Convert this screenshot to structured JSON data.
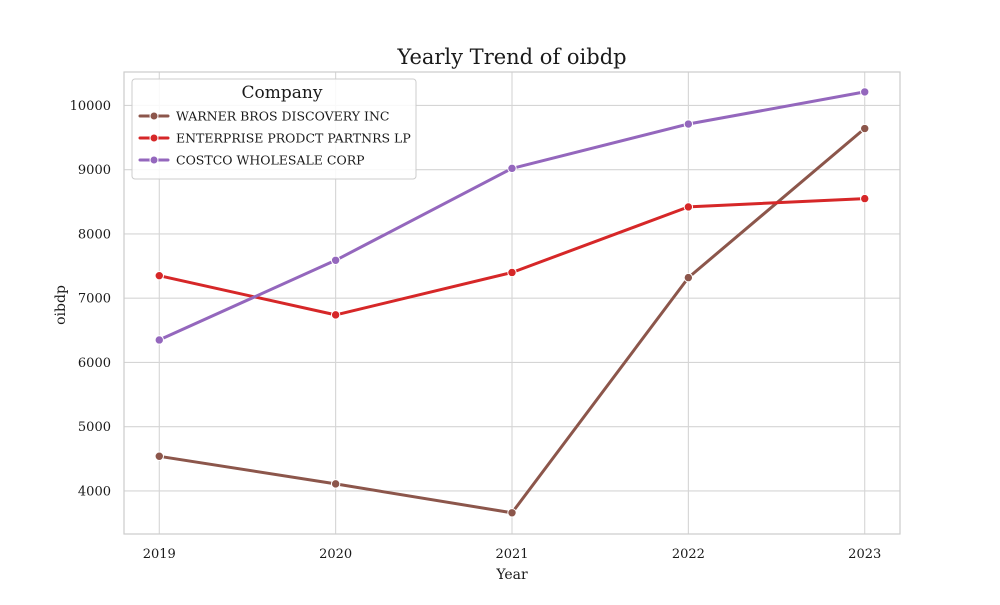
{
  "chart_data": {
    "type": "line",
    "title": "Yearly Trend of oibdp",
    "xlabel": "Year",
    "ylabel": "oibdp",
    "x": [
      "2019",
      "2020",
      "2021",
      "2022",
      "2023"
    ],
    "xlim": [
      2018.8,
      2023.2
    ],
    "ylim": [
      3330,
      10520
    ],
    "yticks": [
      "4000",
      "5000",
      "6000",
      "7000",
      "8000",
      "9000",
      "10000"
    ],
    "grid": true,
    "legend": {
      "title": "Company",
      "placement": "top-left"
    },
    "series": [
      {
        "name": "WARNER BROS DISCOVERY INC",
        "color": "#8c564b",
        "values": [
          4540,
          4110,
          3660,
          7320,
          9640
        ]
      },
      {
        "name": "ENTERPRISE PRODCT PARTNRS LP",
        "color": "#d62728",
        "values": [
          7350,
          6740,
          7400,
          8420,
          8550
        ]
      },
      {
        "name": "COSTCO WHOLESALE CORP",
        "color": "#9467bd",
        "values": [
          6350,
          7590,
          9020,
          9710,
          10210
        ]
      }
    ]
  }
}
